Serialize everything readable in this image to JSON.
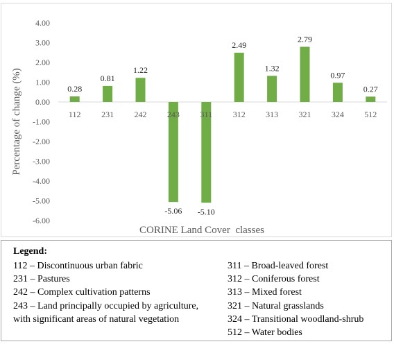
{
  "chart_data": {
    "type": "bar",
    "categories": [
      "112",
      "231",
      "242",
      "243",
      "311",
      "312",
      "313",
      "321",
      "324",
      "512"
    ],
    "values": [
      0.28,
      0.81,
      1.22,
      -5.06,
      -5.1,
      2.49,
      1.32,
      2.79,
      0.97,
      0.27
    ],
    "value_labels": [
      "0.28",
      "0.81",
      "1.22",
      "-5.06",
      "-5.10",
      "2.49",
      "1.32",
      "2.79",
      "0.97",
      "0.27"
    ],
    "title": "",
    "xlabel": "CORINE Land Cover  classes",
    "ylabel": "Percentage of change (%)",
    "ylim": [
      -6,
      4
    ],
    "yticks": [
      4,
      3,
      2,
      1,
      0,
      -1,
      -2,
      -3,
      -4,
      -5,
      -6
    ],
    "ytick_labels": [
      "4.00",
      "3.00",
      "2.00",
      "1.00",
      "0.00",
      "-1.00",
      "-2.00",
      "-3.00",
      "-4.00",
      "-5.00",
      "-6.00"
    ],
    "bar_color": "#70ad47",
    "grid": false,
    "legend": "bottom"
  },
  "legend": {
    "title": "Legend:",
    "left_items": [
      "112 – Discontinuous urban fabric",
      "231 – Pastures",
      "242 – Complex cultivation patterns",
      "243 – Land principally occupied by agriculture, with significant areas of natural vegetation"
    ],
    "right_items": [
      "311 – Broad-leaved forest",
      "312 – Coniferous forest",
      "313 – Mixed forest",
      "321 – Natural grasslands",
      "324 – Transitional woodland-shrub",
      "512 – Water bodies"
    ]
  }
}
